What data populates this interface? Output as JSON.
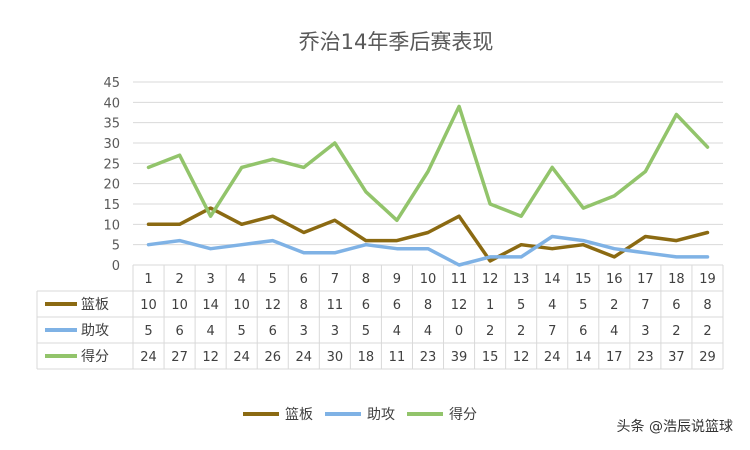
{
  "chart_data": {
    "type": "line",
    "title": "乔治14年季后赛表现",
    "categories": [
      "1",
      "2",
      "3",
      "4",
      "5",
      "6",
      "7",
      "8",
      "9",
      "10",
      "11",
      "12",
      "13",
      "14",
      "15",
      "16",
      "17",
      "18",
      "19"
    ],
    "ylim": [
      0,
      45
    ],
    "yticks": [
      0,
      5,
      10,
      15,
      20,
      25,
      30,
      35,
      40,
      45
    ],
    "grid": true,
    "legend_position": "bottom",
    "data_table": true,
    "series": [
      {
        "name": "篮板",
        "color": "#8B6A12",
        "values": [
          10,
          10,
          14,
          10,
          12,
          8,
          11,
          6,
          6,
          8,
          12,
          1,
          5,
          4,
          5,
          2,
          7,
          6,
          8
        ]
      },
      {
        "name": "助攻",
        "color": "#7FB2E5",
        "values": [
          5,
          6,
          4,
          5,
          6,
          3,
          3,
          5,
          4,
          4,
          0,
          2,
          2,
          7,
          6,
          4,
          3,
          2,
          2
        ]
      },
      {
        "name": "得分",
        "color": "#92C46B",
        "values": [
          24,
          27,
          12,
          24,
          26,
          24,
          30,
          18,
          11,
          23,
          39,
          15,
          12,
          24,
          14,
          17,
          23,
          37,
          29
        ]
      }
    ]
  },
  "watermark": "头条 @浩辰说篮球"
}
